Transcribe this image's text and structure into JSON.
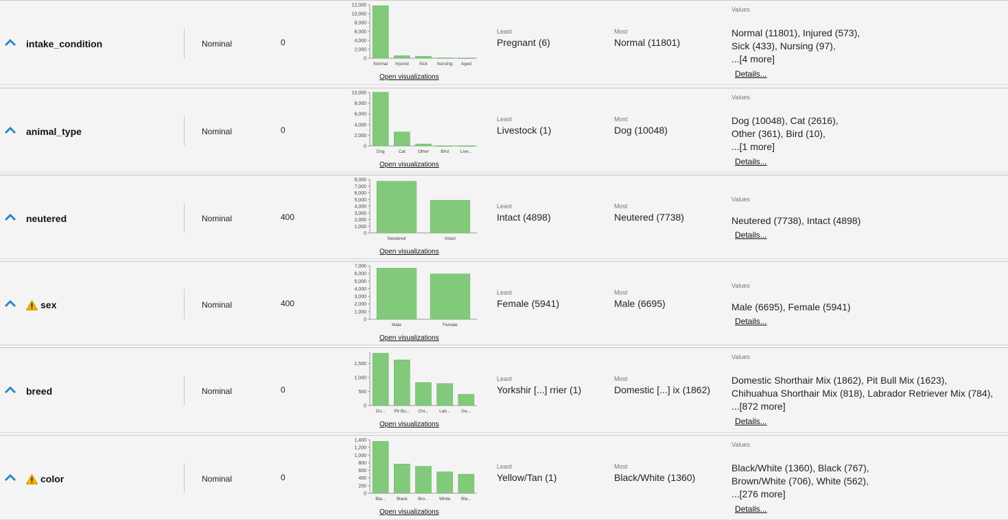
{
  "colors": {
    "bar": "#82c97c",
    "bar_stroke": "#6fb86a",
    "axis": "#999999",
    "icon_blue": "#2a86c8",
    "warn": "#f2b705"
  },
  "common": {
    "least_label": "Least",
    "most_label": "Most",
    "values_label": "Values",
    "open_vis_label": "Open visualizations",
    "details_label": "Details..."
  },
  "rows": [
    {
      "name": "intake_condition",
      "warning": false,
      "type": "Nominal",
      "missing": "0",
      "least": "Pregnant (6)",
      "most": "Normal (11801)",
      "values_lines": [
        "Normal (11801), Injured (573),",
        "Sick (433), Nursing (97),",
        "...[4 more]"
      ],
      "chart_data": {
        "type": "bar",
        "categories": [
          "Normal",
          "Injured",
          "Sick",
          "Nursing",
          "Aged"
        ],
        "values": [
          11801,
          573,
          433,
          97,
          60
        ],
        "ylim": [
          0,
          12000
        ],
        "yticks": [
          "0",
          "2,000",
          "4,000",
          "6,000",
          "8,000",
          "10,000",
          "12,000"
        ],
        "tickvals": [
          0,
          2000,
          4000,
          6000,
          8000,
          10000,
          12000
        ]
      }
    },
    {
      "name": "animal_type",
      "warning": false,
      "type": "Nominal",
      "missing": "0",
      "least": "Livestock (1)",
      "most": "Dog (10048)",
      "values_lines": [
        "Dog (10048), Cat (2616),",
        "Other (361), Bird (10),",
        "...[1 more]"
      ],
      "chart_data": {
        "type": "bar",
        "categories": [
          "Dog",
          "Cat",
          "Other",
          "Bird",
          "Live..."
        ],
        "values": [
          10048,
          2616,
          361,
          10,
          1
        ],
        "ylim": [
          0,
          10000
        ],
        "yticks": [
          "0",
          "2,000",
          "4,000",
          "6,000",
          "8,000",
          "10,000"
        ],
        "tickvals": [
          0,
          2000,
          4000,
          6000,
          8000,
          10000
        ]
      }
    },
    {
      "name": "neutered",
      "warning": false,
      "type": "Nominal",
      "missing": "400",
      "least": "Intact (4898)",
      "most": "Neutered (7738)",
      "values_lines": [
        "Neutered (7738), Intact (4898)"
      ],
      "chart_data": {
        "type": "bar",
        "categories": [
          "Neutered",
          "Intact"
        ],
        "values": [
          7738,
          4898
        ],
        "ylim": [
          0,
          8000
        ],
        "yticks": [
          "0",
          "1,000",
          "2,000",
          "3,000",
          "4,000",
          "5,000",
          "6,000",
          "7,000",
          "8,000"
        ],
        "tickvals": [
          0,
          1000,
          2000,
          3000,
          4000,
          5000,
          6000,
          7000,
          8000
        ]
      }
    },
    {
      "name": "sex",
      "warning": true,
      "type": "Nominal",
      "missing": "400",
      "least": "Female (5941)",
      "most": "Male (6695)",
      "values_lines": [
        "Male (6695), Female (5941)"
      ],
      "chart_data": {
        "type": "bar",
        "categories": [
          "Male",
          "Female"
        ],
        "values": [
          6695,
          5941
        ],
        "ylim": [
          0,
          7000
        ],
        "yticks": [
          "0",
          "1,000",
          "2,000",
          "3,000",
          "4,000",
          "5,000",
          "6,000",
          "7,000"
        ],
        "tickvals": [
          0,
          1000,
          2000,
          3000,
          4000,
          5000,
          6000,
          7000
        ]
      }
    },
    {
      "name": "breed",
      "warning": false,
      "type": "Nominal",
      "missing": "0",
      "least": "Yorkshir [...] rrier (1)",
      "most": "Domestic [...] ix (1862)",
      "values_lines": [
        "Domestic Shorthair Mix (1862), Pit Bull Mix (1623),",
        "Chihuahua Shorthair Mix (818), Labrador Retriever Mix (784),",
        "...[872 more]"
      ],
      "chart_data": {
        "type": "bar",
        "categories": [
          "Do...",
          "Pit Bu...",
          "Chi...",
          "Lab...",
          "Ge..."
        ],
        "values": [
          1862,
          1623,
          818,
          784,
          400
        ],
        "ylim": [
          0,
          1900
        ],
        "yticks": [
          "0",
          "500",
          "1,000",
          "1,500"
        ],
        "tickvals": [
          0,
          500,
          1000,
          1500
        ]
      }
    },
    {
      "name": "color",
      "warning": true,
      "type": "Nominal",
      "missing": "0",
      "least": "Yellow/Tan (1)",
      "most": "Black/White (1360)",
      "values_lines": [
        "Black/White (1360), Black (767),",
        "Brown/White (706), White (562),",
        "...[276 more]"
      ],
      "chart_data": {
        "type": "bar",
        "categories": [
          "Bla...",
          "Black",
          "Bro...",
          "White",
          "Bla..."
        ],
        "values": [
          1360,
          767,
          706,
          562,
          500
        ],
        "ylim": [
          0,
          1400
        ],
        "yticks": [
          "0",
          "200",
          "400",
          "600",
          "800",
          "1,000",
          "1,200",
          "1,400"
        ],
        "tickvals": [
          0,
          200,
          400,
          600,
          800,
          1000,
          1200,
          1400
        ]
      }
    }
  ]
}
